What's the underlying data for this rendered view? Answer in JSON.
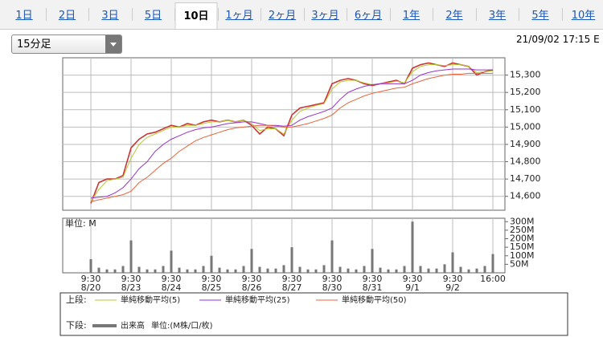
{
  "tabs": [
    "1日",
    "2日",
    "3日",
    "5日",
    "10日",
    "1ヶ月",
    "2ヶ月",
    "3ヶ月",
    "6ヶ月",
    "1年",
    "2年",
    "3年",
    "5年",
    "10年"
  ],
  "active_tab": 4,
  "interval_select": "15分足",
  "timestamp": "21/09/02 17:15 E",
  "legend": {
    "upper_label": "上段:",
    "lower_label": "下段:"
  },
  "chart_data": [
    {
      "type": "line",
      "ylim": [
        14520,
        15400
      ],
      "yticks": [
        {
          "value": 14600,
          "label": "14,600"
        },
        {
          "value": 14700,
          "label": "14,700"
        },
        {
          "value": 14800,
          "label": "14,800"
        },
        {
          "value": 14900,
          "label": "14,900"
        },
        {
          "value": 15000,
          "label": "15,000"
        },
        {
          "value": 15100,
          "label": "15,100"
        },
        {
          "value": 15200,
          "label": "15,200"
        },
        {
          "value": 15300,
          "label": "15,300"
        }
      ],
      "grid": true,
      "series": [
        {
          "color": "#cc3333",
          "values": [
            null,
            null,
            null,
            14560,
            14680,
            14700,
            14700,
            14720,
            14880,
            14930,
            14960,
            14970,
            14990,
            15010,
            15000,
            15020,
            15010,
            15030,
            15040,
            15030,
            15040,
            15030,
            15040,
            15010,
            14960,
            15000,
            14990,
            14950,
            15070,
            15110,
            15120,
            15130,
            15140,
            15250,
            15270,
            15280,
            15270,
            15250,
            15240,
            15250,
            15260,
            15270,
            15250,
            15340,
            15360,
            15370,
            15360,
            15350,
            15370,
            15360,
            15350,
            15300,
            15320,
            15330,
            null
          ]
        },
        {
          "name": "単純移動平均(5)",
          "color": "#b5c934",
          "values": [
            null,
            null,
            null,
            14570,
            14640,
            14690,
            14700,
            14710,
            14820,
            14900,
            14940,
            14960,
            14980,
            15000,
            15000,
            15010,
            15010,
            15020,
            15030,
            15030,
            15040,
            15030,
            15040,
            15020,
            14980,
            14990,
            14990,
            14960,
            15040,
            15090,
            15110,
            15125,
            15135,
            15220,
            15260,
            15270,
            15270,
            15255,
            15245,
            15250,
            15255,
            15265,
            15255,
            15320,
            15350,
            15360,
            15360,
            15355,
            15360,
            15360,
            15350,
            15315,
            15320,
            15325,
            null
          ]
        },
        {
          "name": "単純移動平均(25)",
          "color": "#9933cc",
          "values": [
            null,
            null,
            null,
            14590,
            14595,
            14600,
            14620,
            14650,
            14700,
            14760,
            14800,
            14860,
            14900,
            14930,
            14950,
            14970,
            14985,
            14995,
            15000,
            15010,
            15020,
            15025,
            15030,
            15030,
            15020,
            15010,
            15010,
            15005,
            15010,
            15040,
            15060,
            15075,
            15090,
            15110,
            15160,
            15200,
            15220,
            15235,
            15245,
            15250,
            15250,
            15250,
            15250,
            15270,
            15300,
            15315,
            15325,
            15330,
            15335,
            15335,
            15335,
            15330,
            15330,
            15330,
            null
          ]
        },
        {
          "name": "単純移動平均(50)",
          "color": "#e8643c",
          "values": [
            null,
            null,
            null,
            14570,
            14580,
            14590,
            14600,
            14610,
            14630,
            14680,
            14710,
            14750,
            14790,
            14820,
            14860,
            14890,
            14920,
            14940,
            14955,
            14970,
            14985,
            14995,
            15000,
            15005,
            15010,
            15010,
            15005,
            15000,
            15000,
            15010,
            15020,
            15035,
            15050,
            15070,
            15110,
            15140,
            15160,
            15180,
            15195,
            15205,
            15215,
            15225,
            15230,
            15250,
            15265,
            15280,
            15290,
            15300,
            15305,
            15305,
            15310,
            15310,
            15310,
            15310,
            null
          ]
        }
      ]
    },
    {
      "type": "bar",
      "unit_title": "単位: M",
      "categories": [
        null,
        null,
        null,
        "9:30",
        null,
        null,
        null,
        null,
        "9:30",
        null,
        null,
        null,
        null,
        "9:30",
        null,
        null,
        null,
        null,
        "9:30",
        null,
        null,
        null,
        null,
        "9:30",
        null,
        null,
        null,
        null,
        "9:30",
        null,
        null,
        null,
        null,
        "9:30",
        null,
        null,
        null,
        null,
        "9:30",
        null,
        null,
        null,
        null,
        "9:30",
        null,
        null,
        null,
        null,
        "9:30",
        null,
        null,
        null,
        null,
        "16:00",
        null
      ],
      "category_dates": [
        null,
        null,
        null,
        "8/20",
        null,
        null,
        null,
        null,
        "8/23",
        null,
        null,
        null,
        null,
        "8/24",
        null,
        null,
        null,
        null,
        "8/25",
        null,
        null,
        null,
        null,
        "8/26",
        null,
        null,
        null,
        null,
        "8/27",
        null,
        null,
        null,
        null,
        "8/30",
        null,
        null,
        null,
        null,
        "8/31",
        null,
        null,
        null,
        null,
        "9/1",
        null,
        null,
        null,
        null,
        "9/2",
        null,
        null,
        null,
        null,
        null,
        null
      ],
      "ylim": [
        0,
        320
      ],
      "yticks": [
        {
          "value": 50,
          "label": "50M"
        },
        {
          "value": 100,
          "label": "100M"
        },
        {
          "value": 150,
          "label": "150M"
        },
        {
          "value": 200,
          "label": "200M"
        },
        {
          "value": 250,
          "label": "250M"
        },
        {
          "value": 300,
          "label": "300M"
        }
      ],
      "series": [
        {
          "name": "出来高",
          "unit_label": "単位:(M株/口/枚)",
          "color": "#777777",
          "values": [
            null,
            null,
            null,
            80,
            30,
            20,
            20,
            40,
            190,
            35,
            20,
            20,
            40,
            130,
            30,
            20,
            20,
            40,
            100,
            30,
            20,
            20,
            40,
            140,
            35,
            25,
            25,
            45,
            150,
            35,
            20,
            20,
            45,
            190,
            35,
            25,
            20,
            40,
            140,
            30,
            20,
            20,
            40,
            300,
            40,
            25,
            25,
            50,
            120,
            35,
            20,
            25,
            40,
            110,
            null
          ]
        }
      ]
    }
  ]
}
